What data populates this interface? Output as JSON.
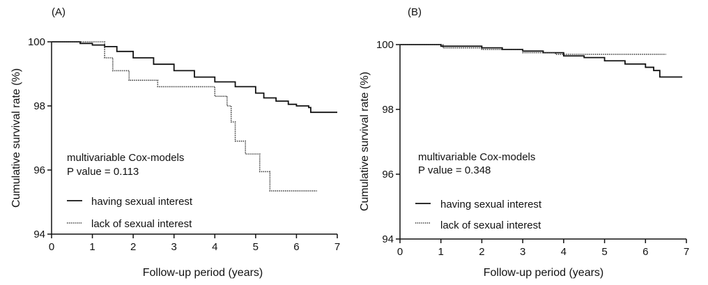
{
  "chart_data": [
    {
      "panel_label": "(A)",
      "type": "line",
      "xlabel": "Follow-up period (years)",
      "ylabel": "Cumulative survival rate (%)",
      "xlim": [
        0,
        7
      ],
      "ylim": [
        94,
        100
      ],
      "x_ticks": [
        "0",
        "1",
        "2",
        "3",
        "4",
        "5",
        "6",
        "7"
      ],
      "y_ticks": [
        "94",
        "96",
        "98",
        "100"
      ],
      "annotation": {
        "line1": "multivariable Cox-models",
        "line2": "P value = 0.113"
      },
      "series": [
        {
          "name": "having sexual interest",
          "style": "solid",
          "color": "#111111",
          "points": [
            [
              0,
              100
            ],
            [
              0.3,
              100
            ],
            [
              0.7,
              99.95
            ],
            [
              1.0,
              99.9
            ],
            [
              1.3,
              99.85
            ],
            [
              1.6,
              99.7
            ],
            [
              2.0,
              99.5
            ],
            [
              2.5,
              99.3
            ],
            [
              3.0,
              99.1
            ],
            [
              3.5,
              98.9
            ],
            [
              4.0,
              98.75
            ],
            [
              4.5,
              98.6
            ],
            [
              5.0,
              98.4
            ],
            [
              5.2,
              98.25
            ],
            [
              5.5,
              98.15
            ],
            [
              5.8,
              98.05
            ],
            [
              6.0,
              98.0
            ],
            [
              6.3,
              97.95
            ],
            [
              6.35,
              97.8
            ],
            [
              7.0,
              97.8
            ]
          ]
        },
        {
          "name": "lack of sexual interest",
          "style": "dotted",
          "color": "#333333",
          "points": [
            [
              0,
              100
            ],
            [
              1.25,
              100
            ],
            [
              1.3,
              99.5
            ],
            [
              1.5,
              99.1
            ],
            [
              1.9,
              98.8
            ],
            [
              2.6,
              98.6
            ],
            [
              4.0,
              98.3
            ],
            [
              4.3,
              98.0
            ],
            [
              4.4,
              97.5
            ],
            [
              4.5,
              96.9
            ],
            [
              4.75,
              96.5
            ],
            [
              5.1,
              95.95
            ],
            [
              5.35,
              95.35
            ],
            [
              6.5,
              95.35
            ]
          ]
        }
      ]
    },
    {
      "panel_label": "(B)",
      "type": "line",
      "xlabel": "Follow-up period (years)",
      "ylabel": "Cumulative survival rate (%)",
      "xlim": [
        0,
        7
      ],
      "ylim": [
        94,
        100
      ],
      "x_ticks": [
        "0",
        "1",
        "2",
        "3",
        "4",
        "5",
        "6",
        "7"
      ],
      "y_ticks": [
        "94",
        "96",
        "98",
        "100"
      ],
      "annotation": {
        "line1": "multivariable Cox-models",
        "line2": "P value = 0.348"
      },
      "series": [
        {
          "name": "having sexual interest",
          "style": "solid",
          "color": "#111111",
          "points": [
            [
              0,
              100
            ],
            [
              0.8,
              100
            ],
            [
              1.0,
              99.95
            ],
            [
              1.5,
              99.95
            ],
            [
              2.0,
              99.9
            ],
            [
              2.5,
              99.85
            ],
            [
              3.0,
              99.8
            ],
            [
              3.5,
              99.75
            ],
            [
              4.0,
              99.65
            ],
            [
              4.5,
              99.6
            ],
            [
              5.0,
              99.5
            ],
            [
              5.5,
              99.4
            ],
            [
              6.0,
              99.3
            ],
            [
              6.2,
              99.2
            ],
            [
              6.35,
              99.0
            ],
            [
              6.9,
              99.0
            ]
          ]
        },
        {
          "name": "lack of sexual interest",
          "style": "dotted",
          "color": "#333333",
          "points": [
            [
              0,
              100
            ],
            [
              1.0,
              100
            ],
            [
              1.05,
              99.9
            ],
            [
              2.0,
              99.85
            ],
            [
              3.0,
              99.75
            ],
            [
              3.8,
              99.7
            ],
            [
              6.5,
              99.7
            ]
          ]
        }
      ]
    }
  ]
}
